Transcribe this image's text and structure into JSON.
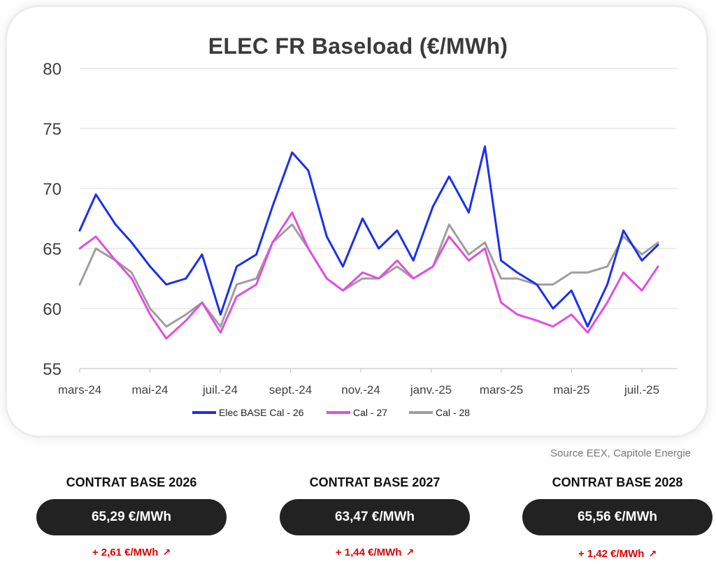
{
  "source": "Source EEX, Capitole Energie",
  "contracts": [
    {
      "title": "CONTRAT BASE 2026",
      "price": "65,29 €/MWh",
      "change": "+ 2,61 €/MWh",
      "icon": "arrow-up-right-icon"
    },
    {
      "title": "CONTRAT BASE 2027",
      "price": "63,47 €/MWh",
      "change": "+ 1,44 €/MWh",
      "icon": "arrow-up-right-icon"
    },
    {
      "title": "CONTRAT BASE 2028",
      "price": "65,56 €/MWh",
      "change": "+ 1,42 €/MWh",
      "icon": "arrow-up-right-icon"
    }
  ],
  "colors": {
    "pill": "#222222",
    "change": "#e00000",
    "grid": "#d9d9d9"
  },
  "chart_data": {
    "type": "line",
    "title": "ELEC FR Baseload (€/MWh)",
    "xlabel": "",
    "ylabel": "",
    "ylim": [
      55,
      80
    ],
    "yticks": [
      55,
      60,
      65,
      70,
      75,
      80
    ],
    "x_tick_labels": [
      "mars-24",
      "mai-24",
      "juil.-24",
      "sept.-24",
      "nov.-24",
      "janv.-25",
      "mars-25",
      "mai-25",
      "juil.-25"
    ],
    "grid": true,
    "legend_position": "bottom",
    "x_dates": [
      "2024-03-01",
      "2024-03-15",
      "2024-04-01",
      "2024-04-15",
      "2024-05-01",
      "2024-05-15",
      "2024-06-01",
      "2024-06-15",
      "2024-07-01",
      "2024-07-15",
      "2024-08-01",
      "2024-08-15",
      "2024-09-01",
      "2024-09-15",
      "2024-10-01",
      "2024-10-15",
      "2024-11-01",
      "2024-11-15",
      "2024-12-01",
      "2024-12-15",
      "2025-01-01",
      "2025-01-15",
      "2025-02-01",
      "2025-02-15",
      "2025-03-01",
      "2025-03-15",
      "2025-04-01",
      "2025-04-15",
      "2025-05-01",
      "2025-05-15",
      "2025-06-01",
      "2025-06-15",
      "2025-07-01",
      "2025-07-15"
    ],
    "series": [
      {
        "name": "Elec BASE Cal - 26",
        "color": "#1a2ff0",
        "values": [
          66.5,
          69.5,
          67.0,
          65.5,
          63.5,
          62.0,
          62.5,
          64.5,
          59.5,
          63.5,
          64.5,
          68.5,
          73.0,
          71.5,
          66.0,
          63.5,
          67.5,
          65.0,
          66.5,
          64.0,
          68.5,
          71.0,
          68.0,
          73.5,
          64.0,
          63.0,
          62.0,
          60.0,
          61.5,
          58.5,
          62.0,
          66.5,
          64.0,
          65.3
        ]
      },
      {
        "name": "Cal - 27",
        "color": "#e04ee0",
        "values": [
          65.0,
          66.0,
          64.0,
          62.5,
          59.5,
          57.5,
          59.0,
          60.5,
          58.0,
          61.0,
          62.0,
          65.5,
          68.0,
          65.0,
          62.5,
          61.5,
          63.0,
          62.5,
          64.0,
          62.5,
          63.5,
          66.0,
          64.0,
          65.0,
          60.5,
          59.5,
          59.0,
          58.5,
          59.5,
          58.0,
          60.5,
          63.0,
          61.5,
          63.5
        ]
      },
      {
        "name": "Cal - 28",
        "color": "#9e9e9e",
        "values": [
          62.0,
          65.0,
          64.0,
          63.0,
          60.0,
          58.5,
          59.5,
          60.5,
          58.5,
          62.0,
          62.5,
          65.5,
          67.0,
          65.0,
          62.5,
          61.5,
          62.5,
          62.5,
          63.5,
          62.5,
          63.5,
          67.0,
          64.5,
          65.5,
          62.5,
          62.5,
          62.0,
          62.0,
          63.0,
          63.0,
          63.5,
          66.0,
          64.5,
          65.5
        ]
      }
    ]
  }
}
